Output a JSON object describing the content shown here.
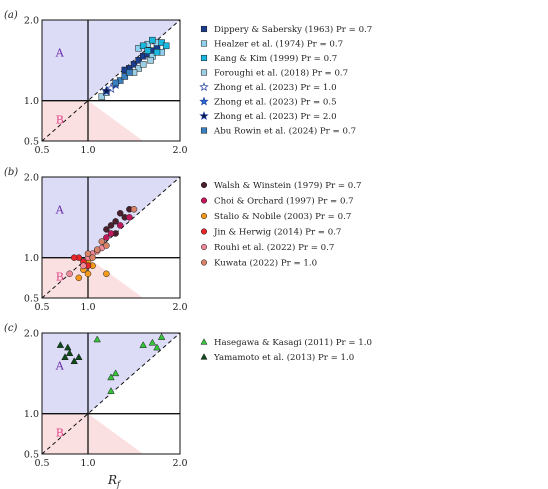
{
  "xlabel": "R_f",
  "region_labels": {
    "A": "A",
    "B": "B"
  },
  "colors": {
    "regionA": "#dcdcf7",
    "regionB": "#fbe0e2",
    "labelA": "#6a2aa8",
    "labelB": "#e0458a"
  },
  "chart_data": [
    {
      "panel_label": "(a)",
      "type": "scatter",
      "xlim": [
        0.5,
        2.0
      ],
      "ylim": [
        0.5,
        2.0
      ],
      "x_ticks": [
        "0.5",
        "1.0",
        "2.0"
      ],
      "y_ticks": [
        "0.5",
        "1.0",
        "2.0"
      ],
      "series": [
        {
          "name": "Dippery & Sabersky (1963) Pr = 0.7",
          "marker": "square",
          "color": "#1a3d8f",
          "points": [
            [
              1.45,
              1.4
            ],
            [
              1.5,
              1.45
            ],
            [
              1.55,
              1.5
            ],
            [
              1.6,
              1.55
            ],
            [
              1.65,
              1.58
            ],
            [
              1.7,
              1.62
            ],
            [
              1.75,
              1.65
            ],
            [
              1.4,
              1.38
            ]
          ]
        },
        {
          "name": "Healzer et al. (1974) Pr = 0.7",
          "marker": "square",
          "color": "#8fd2ef",
          "points": [
            [
              1.55,
              1.65
            ],
            [
              1.65,
              1.7
            ],
            [
              1.75,
              1.72
            ],
            [
              1.8,
              1.6
            ],
            [
              1.7,
              1.55
            ]
          ]
        },
        {
          "name": "Kang & Kim (1999) Pr = 0.7",
          "marker": "square",
          "color": "#1ab8e0",
          "points": [
            [
              1.6,
              1.68
            ],
            [
              1.7,
              1.75
            ],
            [
              1.8,
              1.72
            ],
            [
              1.85,
              1.68
            ],
            [
              1.75,
              1.6
            ],
            [
              1.65,
              1.62
            ]
          ]
        },
        {
          "name": "Foroughi et al. (2018) Pr = 0.7",
          "marker": "square",
          "color": "#9ccfe6",
          "points": [
            [
              1.55,
              1.4
            ],
            [
              1.6,
              1.45
            ],
            [
              1.68,
              1.5
            ],
            [
              1.5,
              1.35
            ],
            [
              1.15,
              1.05
            ],
            [
              1.2,
              1.1
            ]
          ]
        },
        {
          "name": "Zhong et al. (2023) Pr = 1.0",
          "marker": "star",
          "color": "#ffffff",
          "points": [
            [
              1.25,
              1.15
            ]
          ]
        },
        {
          "name": "Zhong et al. (2023) Pr = 0.5",
          "marker": "star",
          "color": "#2b6fd6",
          "points": [
            [
              1.3,
              1.2
            ]
          ]
        },
        {
          "name": "Zhong et al. (2023) Pr = 2.0",
          "marker": "star",
          "color": "#0a1a4a",
          "points": [
            [
              1.2,
              1.12
            ]
          ]
        },
        {
          "name": "Abu Rowin et al. (2024) Pr = 0.7",
          "marker": "square",
          "color": "#3a7fc0",
          "points": [
            [
              1.35,
              1.25
            ],
            [
              1.4,
              1.3
            ],
            [
              1.45,
              1.35
            ],
            [
              1.3,
              1.22
            ]
          ]
        }
      ]
    },
    {
      "panel_label": "(b)",
      "type": "scatter",
      "xlim": [
        0.5,
        2.0
      ],
      "ylim": [
        0.5,
        2.0
      ],
      "x_ticks": [
        "0.5",
        "1.0",
        "2.0"
      ],
      "y_ticks": [
        "0.5",
        "1.0",
        "2.0"
      ],
      "series": [
        {
          "name": "Walsh & Winstein (1979) Pr = 0.7",
          "marker": "circle",
          "color": "#4a1f2e",
          "points": [
            [
              1.2,
              1.35
            ],
            [
              1.25,
              1.4
            ],
            [
              1.3,
              1.45
            ],
            [
              1.35,
              1.55
            ],
            [
              1.4,
              1.5
            ],
            [
              1.45,
              1.6
            ],
            [
              1.3,
              1.3
            ]
          ]
        },
        {
          "name": "Choi & Orchard (1997) Pr = 0.7",
          "marker": "circle",
          "color": "#c2185b",
          "points": [
            [
              1.25,
              1.3
            ],
            [
              1.35,
              1.4
            ],
            [
              1.45,
              1.5
            ],
            [
              1.2,
              1.25
            ]
          ]
        },
        {
          "name": "Stalio & Nobile (2003) Pr = 0.7",
          "marker": "circle",
          "color": "#f39a1c",
          "points": [
            [
              0.95,
              0.85
            ],
            [
              1.0,
              0.8
            ],
            [
              0.9,
              0.75
            ],
            [
              1.2,
              0.8
            ],
            [
              1.05,
              0.9
            ],
            [
              1.0,
              0.95
            ]
          ]
        },
        {
          "name": "Jin & Herwig (2014) Pr = 0.7",
          "marker": "circle",
          "color": "#e8262a",
          "points": [
            [
              0.9,
              1.0
            ],
            [
              0.95,
              0.95
            ],
            [
              1.0,
              0.9
            ],
            [
              0.85,
              1.0
            ]
          ]
        },
        {
          "name": "Rouhi et al. (2022) Pr = 0.7",
          "marker": "circle",
          "color": "#f08a99",
          "points": [
            [
              1.05,
              1.05
            ],
            [
              1.1,
              1.08
            ],
            [
              1.15,
              1.12
            ],
            [
              0.8,
              0.8
            ],
            [
              1.0,
              1.0
            ],
            [
              0.95,
              0.9
            ]
          ]
        },
        {
          "name": "Kuwata (2022) Pr = 1.0",
          "marker": "circle",
          "color": "#d98268",
          "points": [
            [
              1.1,
              1.1
            ],
            [
              1.15,
              1.2
            ],
            [
              1.2,
              1.15
            ],
            [
              1.5,
              1.6
            ],
            [
              1.0,
              1.05
            ],
            [
              1.05,
              1.0
            ]
          ]
        }
      ]
    },
    {
      "panel_label": "(c)",
      "type": "scatter",
      "xlim": [
        0.5,
        2.0
      ],
      "ylim": [
        0.5,
        2.0
      ],
      "x_ticks": [
        "0.5",
        "1.0",
        "2.0"
      ],
      "y_ticks": [
        "0.5",
        "1.0",
        "2.0"
      ],
      "series": [
        {
          "name": "Hasegawa & Kasagi (2011) Pr = 1.0",
          "marker": "triangle",
          "color": "#35c43a",
          "points": [
            [
              1.25,
              1.45
            ],
            [
              1.3,
              1.5
            ],
            [
              1.6,
              1.85
            ],
            [
              1.7,
              1.88
            ],
            [
              1.75,
              1.82
            ],
            [
              1.8,
              1.95
            ],
            [
              1.1,
              1.92
            ],
            [
              1.25,
              1.28
            ]
          ]
        },
        {
          "name": "Yamamoto et al. (2013) Pr = 1.0",
          "marker": "triangle",
          "color": "#0f4a1a",
          "points": [
            [
              0.7,
              1.85
            ],
            [
              0.75,
              1.7
            ],
            [
              0.8,
              1.75
            ],
            [
              0.85,
              1.65
            ],
            [
              0.78,
              1.82
            ],
            [
              0.9,
              1.7
            ]
          ]
        }
      ]
    }
  ]
}
